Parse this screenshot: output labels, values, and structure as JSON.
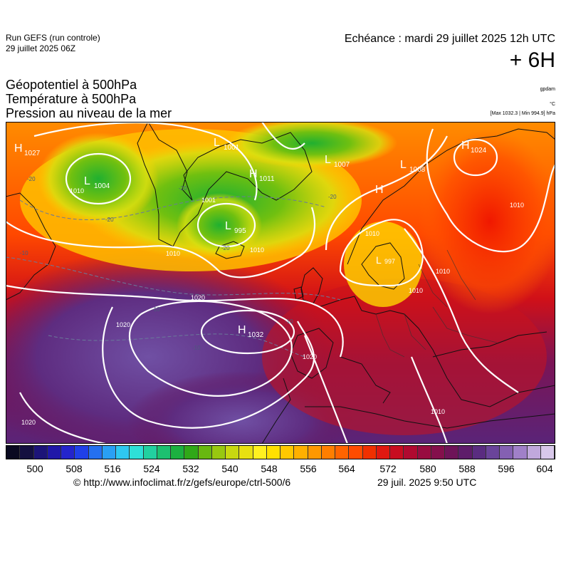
{
  "header": {
    "run_title": "Run GEFS (run controle)",
    "run_date": "29 juillet 2025 06Z",
    "echeance": "Echéance : mardi 29 juillet 2025 12h UTC",
    "lead": "+ 6H"
  },
  "fields": {
    "line1": "Géopotentiel à 500hPa",
    "line2": "Température à 500hPa",
    "line3": "Pression au niveau de la mer"
  },
  "units": {
    "u1": "gpdam",
    "u2": "°C",
    "u3": "[Max 1032.3 | Min 994.9] hPa"
  },
  "map": {
    "pressure_centers": [
      {
        "type": "H",
        "value": "1027"
      },
      {
        "type": "L",
        "value": "1004"
      },
      {
        "type": "L",
        "value": "1001"
      },
      {
        "type": "H",
        "value": "1011"
      },
      {
        "type": "L",
        "value": "1007"
      },
      {
        "type": "L",
        "value": "1008"
      },
      {
        "type": "H",
        "value": "1024"
      },
      {
        "type": "L",
        "value": "995"
      },
      {
        "type": "L",
        "value": "997"
      },
      {
        "type": "H",
        "value": "1032"
      },
      {
        "type": "H",
        "value": ""
      }
    ],
    "isobar_labels": [
      "1001",
      "1010",
      "1010",
      "1020",
      "1020",
      "1020",
      "1020",
      "1010",
      "1010",
      "1010",
      "1010",
      "1010",
      "1010"
    ],
    "temp_labels": [
      "-20",
      "-20",
      "-20",
      "-20",
      "-20",
      "-10",
      "-10",
      "-10",
      "-10"
    ]
  },
  "colorbar": {
    "ticks": [
      "500",
      "508",
      "516",
      "524",
      "532",
      "540",
      "548",
      "556",
      "564",
      "572",
      "580",
      "588",
      "596",
      "604"
    ],
    "colors": [
      "#0a0a20",
      "#141040",
      "#1c1478",
      "#2018a8",
      "#2424cc",
      "#2040e8",
      "#2470f0",
      "#2aa0f4",
      "#2ec8f0",
      "#2ee0d8",
      "#22d0a0",
      "#1cc070",
      "#1cb040",
      "#30a818",
      "#68b810",
      "#98c810",
      "#c8d810",
      "#e8e010",
      "#fff020",
      "#ffe000",
      "#ffc800",
      "#ffb000",
      "#ff9800",
      "#ff7e00",
      "#ff6400",
      "#ff4c00",
      "#f03000",
      "#e01810",
      "#c80c20",
      "#b00a30",
      "#980c40",
      "#84104c",
      "#6e1458",
      "#5e1c6a",
      "#5a2c80",
      "#6a449a",
      "#8460b2",
      "#a080c8",
      "#c0a8dc",
      "#d8c8ea"
    ]
  },
  "footer": {
    "credit": "© http://www.infoclimat.fr/z/gefs/europe/ctrl-500/6",
    "stamp": "29 juil. 2025  9:50 UTC"
  }
}
